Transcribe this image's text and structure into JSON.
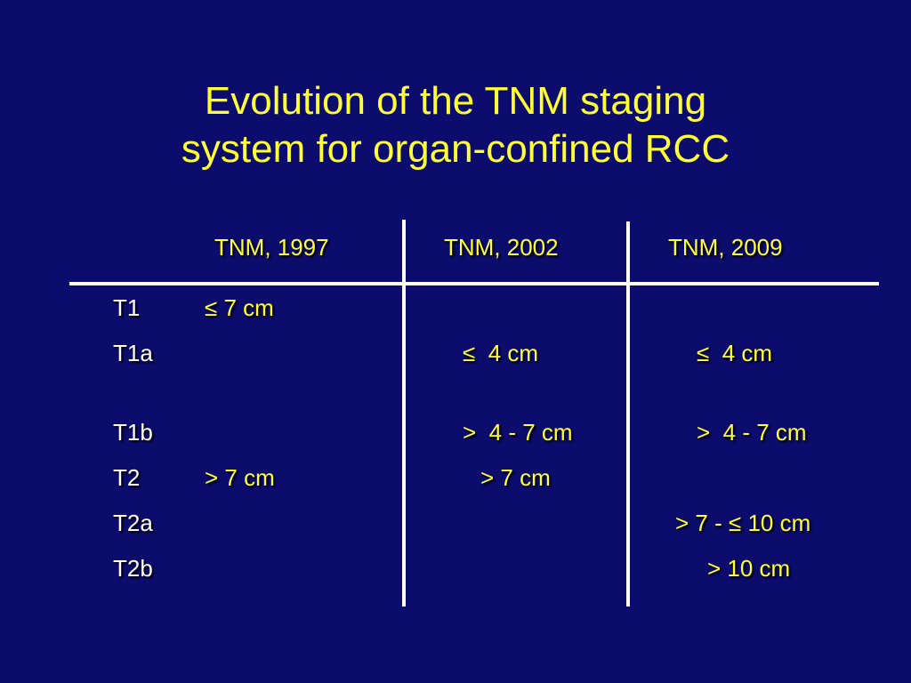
{
  "slide": {
    "title_line1": "Evolution of the TNM staging",
    "title_line2": "system for organ-confined RCC"
  },
  "table": {
    "headers": [
      "TNM, 1997",
      "TNM, 2002",
      "TNM, 2009"
    ],
    "rows": [
      {
        "label": "T1",
        "c1997": "≤ 7 cm",
        "c2002": "",
        "c2009": ""
      },
      {
        "label": "T1a",
        "c1997": "",
        "c2002": "≤  4 cm",
        "c2009": "≤  4 cm"
      },
      {
        "label": "T1b",
        "c1997": "",
        "c2002": ">  4 - 7 cm",
        "c2009": ">  4 - 7 cm"
      },
      {
        "label": "T2",
        "c1997": "> 7 cm",
        "c2002": "> 7 cm",
        "c2009": ""
      },
      {
        "label": "T2a",
        "c1997": "",
        "c2002": "",
        "c2009": "> 7 - ≤ 10 cm"
      },
      {
        "label": "T2b",
        "c1997": "",
        "c2002": "",
        "c2009": "> 10 cm"
      }
    ]
  },
  "colors": {
    "background": "#0c0c6c",
    "title": "#ffff33",
    "values": "#ffff33",
    "labels": "#ffffff",
    "rules": "#ffffff"
  }
}
